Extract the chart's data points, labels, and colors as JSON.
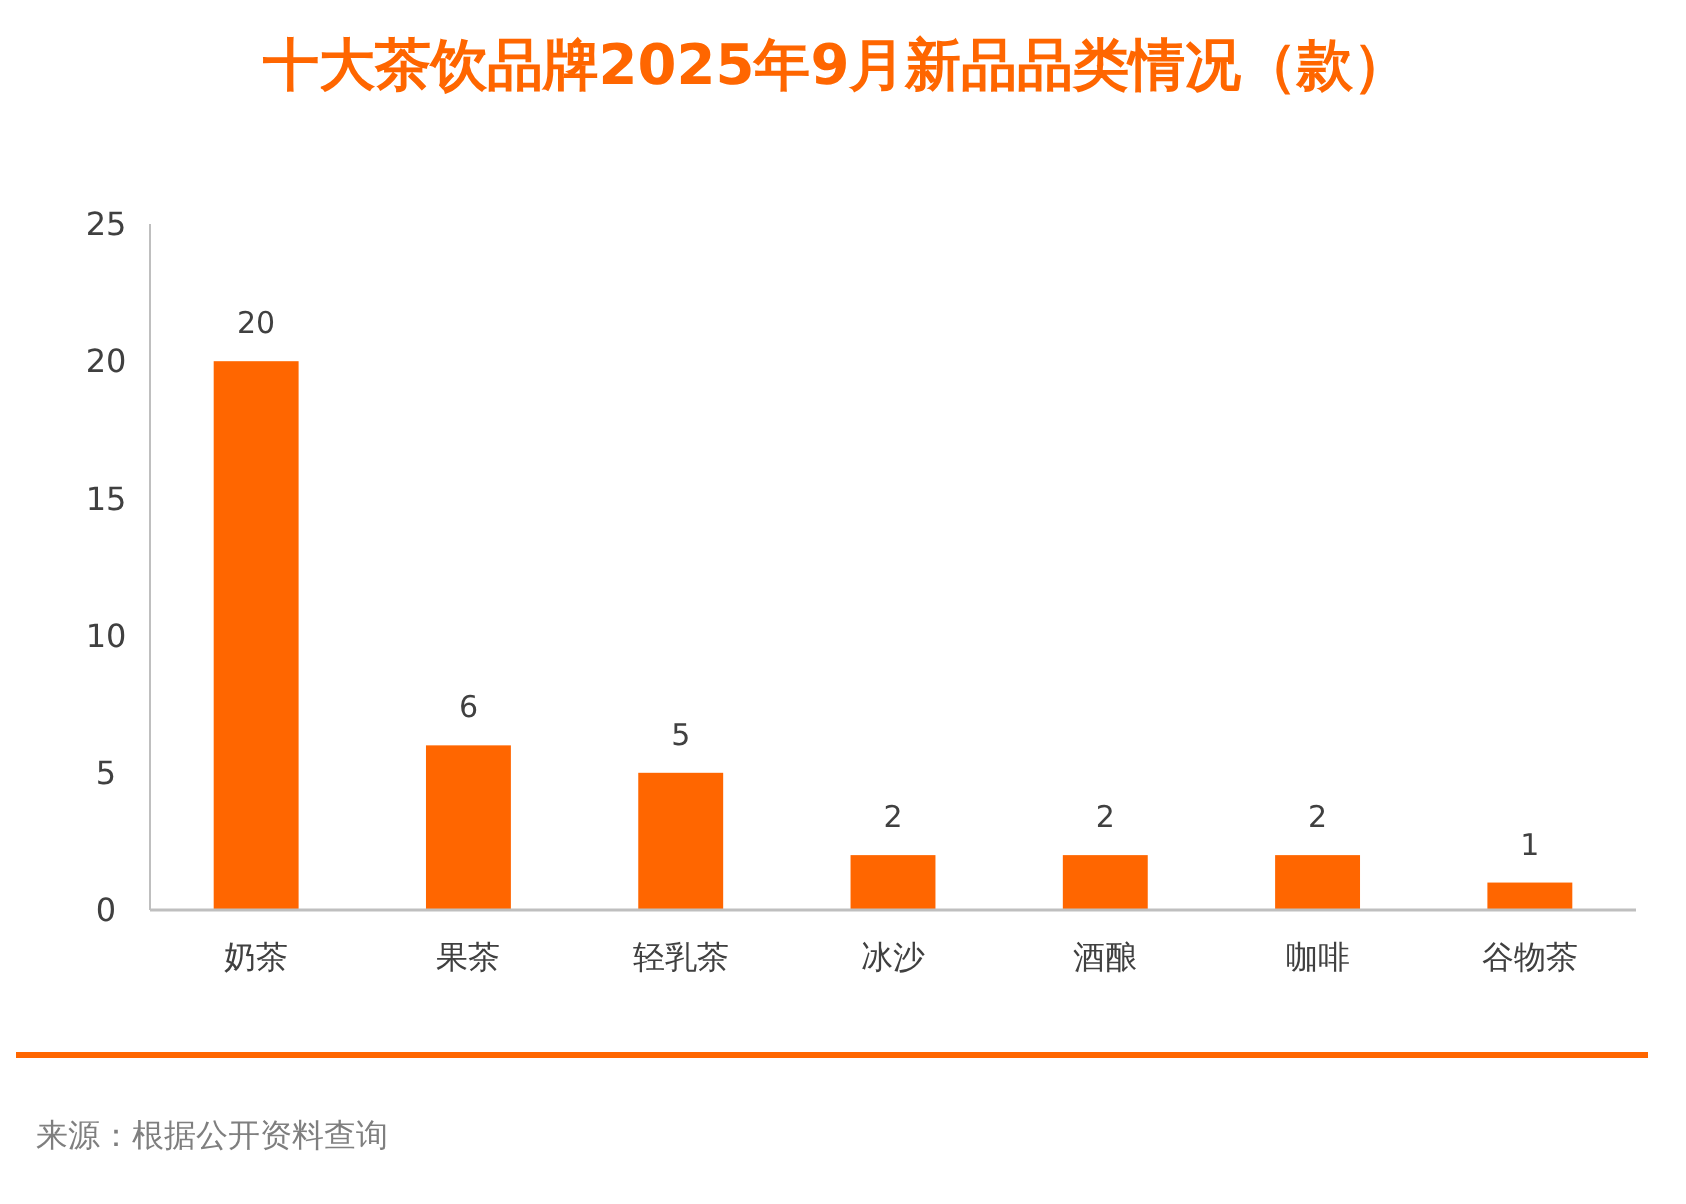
{
  "chart_data": {
    "type": "bar",
    "title": "十大茶饮品牌2025年9月新品品类情况（款）",
    "categories": [
      "奶茶",
      "果茶",
      "轻乳茶",
      "冰沙",
      "酒酿",
      "咖啡",
      "谷物茶"
    ],
    "values": [
      20,
      6,
      5,
      2,
      2,
      2,
      1
    ],
    "color": "#ff6600",
    "ylim": [
      0,
      25
    ],
    "yticks": [
      0,
      5,
      10,
      15,
      20,
      25
    ],
    "grid": false,
    "data_labels": true,
    "annotations": [
      "来源：根据公开资料查询"
    ]
  }
}
